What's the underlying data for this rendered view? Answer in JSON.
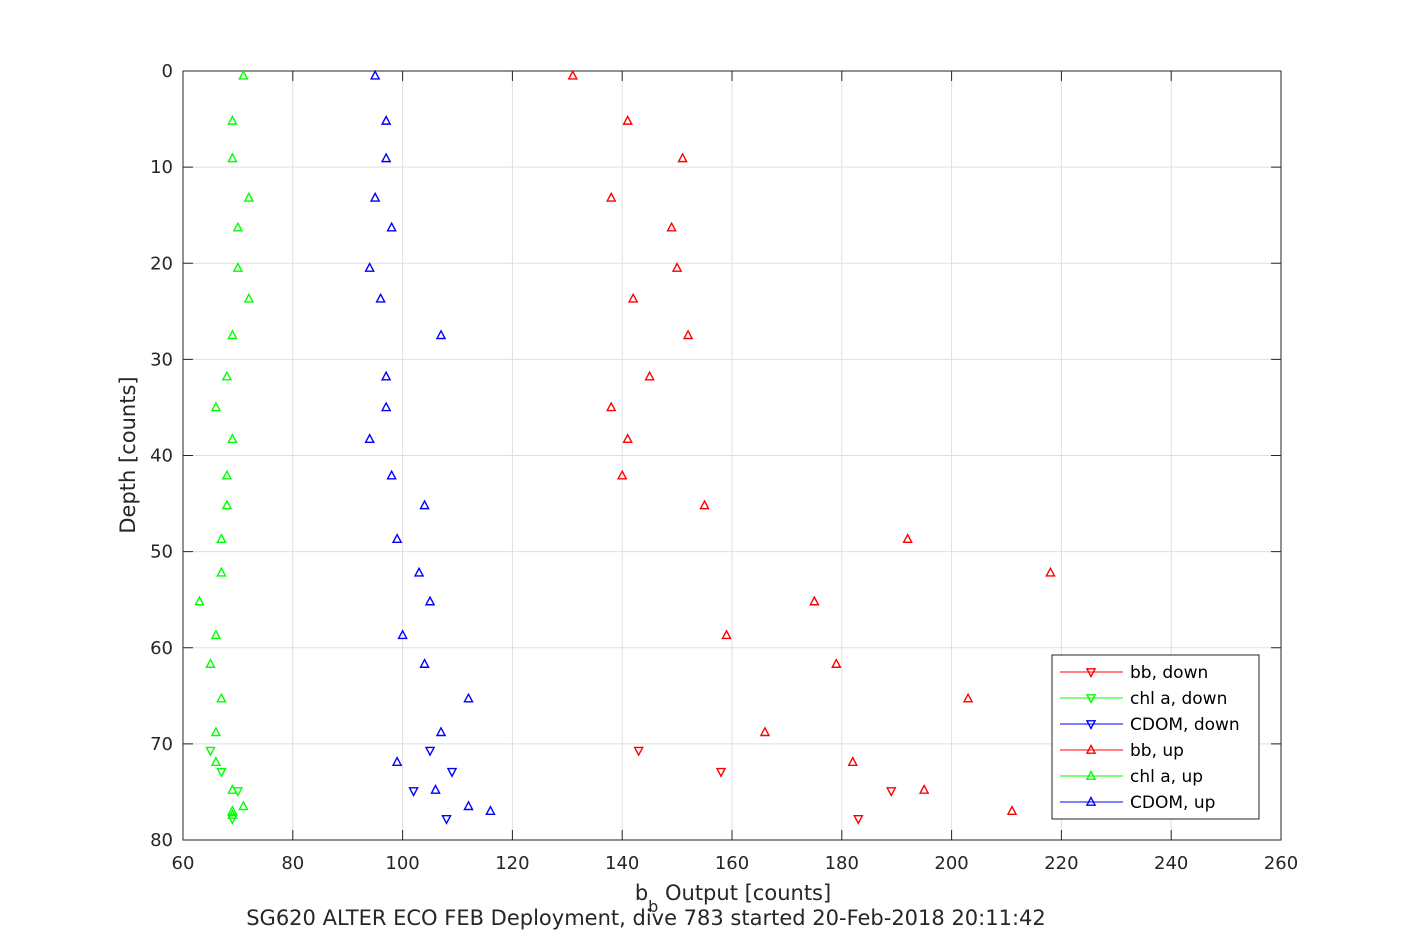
{
  "chart_data": {
    "type": "scatter",
    "title": "",
    "xlabel_main": "b",
    "xlabel_sub": "b",
    "xlabel_rest": " Output [counts]",
    "ylabel": "Depth [counts]",
    "caption": "SG620 ALTER ECO FEB Deployment, dive 783 started 20-Feb-2018 20:11:42",
    "xlim": [
      60,
      260
    ],
    "ylim": [
      0,
      80
    ],
    "y_reversed": true,
    "x_ticks": [
      "60",
      "80",
      "100",
      "120",
      "140",
      "160",
      "180",
      "200",
      "220",
      "240",
      "260"
    ],
    "y_ticks": [
      "0",
      "10",
      "20",
      "30",
      "40",
      "50",
      "60",
      "70",
      "80"
    ],
    "grid": true,
    "legend_position": "bottom-right",
    "series": [
      {
        "name": "bb, down",
        "marker": "triangle-down",
        "color": "#ff0000",
        "points": [
          [
            143,
            70.7
          ],
          [
            158,
            72.9
          ],
          [
            189,
            74.9
          ],
          [
            183,
            77.8
          ]
        ]
      },
      {
        "name": "chl a, down",
        "marker": "triangle-down",
        "color": "#00ff00",
        "points": [
          [
            65,
            70.7
          ],
          [
            67,
            72.9
          ],
          [
            70,
            74.9
          ],
          [
            69,
            77.8
          ]
        ]
      },
      {
        "name": "CDOM, down",
        "marker": "triangle-down",
        "color": "#0000ff",
        "points": [
          [
            105,
            70.7
          ],
          [
            109,
            72.9
          ],
          [
            102,
            74.9
          ],
          [
            108,
            77.8
          ]
        ]
      },
      {
        "name": "bb, up",
        "marker": "triangle-up",
        "color": "#ff0000",
        "points": [
          [
            131,
            0.5
          ],
          [
            141,
            5.2
          ],
          [
            151,
            9.1
          ],
          [
            138,
            13.2
          ],
          [
            149,
            16.3
          ],
          [
            150,
            20.5
          ],
          [
            142,
            23.7
          ],
          [
            152,
            27.5
          ],
          [
            145,
            31.8
          ],
          [
            138,
            35.0
          ],
          [
            141,
            38.3
          ],
          [
            140,
            42.1
          ],
          [
            155,
            45.2
          ],
          [
            192,
            48.7
          ],
          [
            218,
            52.2
          ],
          [
            175,
            55.2
          ],
          [
            159,
            58.7
          ],
          [
            179,
            61.7
          ],
          [
            203,
            65.3
          ],
          [
            166,
            68.8
          ],
          [
            182,
            71.9
          ],
          [
            195,
            74.8
          ],
          [
            211,
            77.0
          ]
        ]
      },
      {
        "name": "chl a, up",
        "marker": "triangle-up",
        "color": "#00ff00",
        "points": [
          [
            71,
            0.5
          ],
          [
            69,
            5.2
          ],
          [
            69,
            9.1
          ],
          [
            72,
            13.2
          ],
          [
            70,
            16.3
          ],
          [
            70,
            20.5
          ],
          [
            72,
            23.7
          ],
          [
            69,
            27.5
          ],
          [
            68,
            31.8
          ],
          [
            66,
            35.0
          ],
          [
            69,
            38.3
          ],
          [
            68,
            42.1
          ],
          [
            68,
            45.2
          ],
          [
            67,
            48.7
          ],
          [
            67,
            52.2
          ],
          [
            63,
            55.2
          ],
          [
            66,
            58.7
          ],
          [
            65,
            61.7
          ],
          [
            67,
            65.3
          ],
          [
            66,
            68.8
          ],
          [
            66,
            71.9
          ],
          [
            69,
            74.8
          ],
          [
            71,
            76.5
          ],
          [
            69,
            77.0
          ],
          [
            69,
            77.4
          ]
        ]
      },
      {
        "name": "CDOM, up",
        "marker": "triangle-up",
        "color": "#0000ff",
        "points": [
          [
            95,
            0.5
          ],
          [
            97,
            5.2
          ],
          [
            97,
            9.1
          ],
          [
            95,
            13.2
          ],
          [
            98,
            16.3
          ],
          [
            94,
            20.5
          ],
          [
            96,
            23.7
          ],
          [
            107,
            27.5
          ],
          [
            97,
            31.8
          ],
          [
            97,
            35.0
          ],
          [
            94,
            38.3
          ],
          [
            98,
            42.1
          ],
          [
            104,
            45.2
          ],
          [
            99,
            48.7
          ],
          [
            103,
            52.2
          ],
          [
            105,
            55.2
          ],
          [
            100,
            58.7
          ],
          [
            104,
            61.7
          ],
          [
            112,
            65.3
          ],
          [
            107,
            68.8
          ],
          [
            99,
            71.9
          ],
          [
            106,
            74.8
          ],
          [
            112,
            76.5
          ],
          [
            116,
            77.0
          ]
        ]
      }
    ]
  }
}
